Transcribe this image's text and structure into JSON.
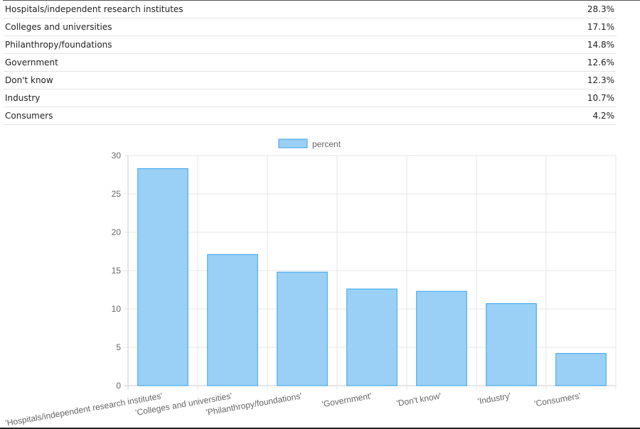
{
  "table": {
    "rows": [
      {
        "label": "Hospitals/independent research institutes",
        "value": "28.3%"
      },
      {
        "label": "Colleges and universities",
        "value": "17.1%"
      },
      {
        "label": "Philanthropy/foundations",
        "value": "14.8%"
      },
      {
        "label": "Government",
        "value": "12.6%"
      },
      {
        "label": "Don't know",
        "value": "12.3%"
      },
      {
        "label": "Industry",
        "value": "10.7%"
      },
      {
        "label": "Consumers",
        "value": "4.2%"
      }
    ]
  },
  "chart_data": {
    "type": "bar",
    "categories": [
      "'Hospitals/independent research institutes'",
      "'Colleges and universities'",
      "'Philanthropy/foundations'",
      "'Government'",
      "'Don't know'",
      "'Industry'",
      "'Consumers'"
    ],
    "series": [
      {
        "name": "percent",
        "values": [
          28.3,
          17.1,
          14.8,
          12.6,
          12.3,
          10.7,
          4.2
        ]
      }
    ],
    "ylim": [
      0,
      30
    ],
    "yticks": [
      0,
      5,
      10,
      15,
      20,
      25,
      30
    ],
    "grid": true,
    "legend": "top-center",
    "colors": {
      "bar_fill": "#9ad0f5",
      "bar_stroke": "#36a2eb",
      "grid": "#e5e5e5",
      "tick_text": "#666666"
    }
  }
}
